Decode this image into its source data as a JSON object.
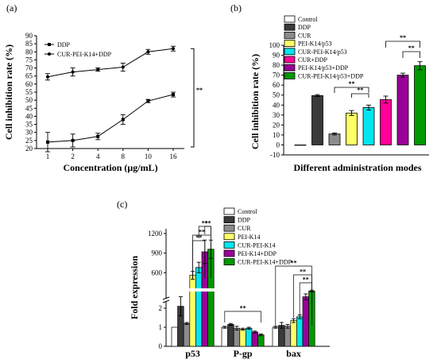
{
  "chart_data": [
    {
      "panel": "(a)",
      "type": "line",
      "x": [
        "1",
        "2",
        "4",
        "8",
        "10",
        "16"
      ],
      "xlabel": "Concentration (μg/mL)",
      "ylabel": "Cell inhibition rate (%)",
      "ylim": [
        20,
        90
      ],
      "yticks": [
        20,
        25,
        30,
        35,
        40,
        45,
        50,
        55,
        60,
        65,
        70,
        75,
        80,
        85,
        90
      ],
      "series": [
        {
          "name": "DDP",
          "values": [
            24,
            25,
            27.5,
            38,
            49.5,
            53.5
          ],
          "errors": [
            6,
            4,
            2,
            3,
            1,
            1.5
          ]
        },
        {
          "name": "CUR-PEI-K14+DDP",
          "values": [
            64.5,
            67.5,
            69,
            70.5,
            80,
            82
          ],
          "errors": [
            2,
            2.5,
            1,
            2.5,
            1.5,
            1.5
          ]
        }
      ],
      "annotation": "**",
      "grid": false,
      "legend": "top-left"
    },
    {
      "panel": "(b)",
      "type": "bar",
      "categories": [
        "Control",
        "DDP",
        "CUR",
        "PEI-K14/p53",
        "CUR-PEI-K14/p53",
        "CUR+DDP",
        "PEI-K14/p53+DDP",
        "CUR-PEI-K14/p53+DDP"
      ],
      "values": [
        0,
        49.5,
        11,
        32,
        37.5,
        45.5,
        70,
        79.5
      ],
      "errors": [
        0,
        1,
        1,
        2.5,
        2.5,
        3.5,
        2,
        4
      ],
      "colors": [
        "#ffffff",
        "#3a3a3a",
        "#8c8c8c",
        "#ffff66",
        "#00e5ee",
        "#ff0099",
        "#990099",
        "#009900"
      ],
      "xlabel": "Different administration modes",
      "ylabel": "Cell inhibition rate (%)",
      "ylim": [
        -10,
        100
      ],
      "yticks": [
        -10,
        0,
        10,
        20,
        30,
        40,
        50,
        60,
        70,
        80,
        90,
        100
      ],
      "significance": [
        "**",
        "**",
        "**",
        "**"
      ],
      "grid": false,
      "legend": "top-left"
    },
    {
      "panel": "(c)",
      "type": "bar",
      "categories": [
        "p53",
        "P-gp",
        "bax"
      ],
      "series": [
        {
          "name": "Control",
          "values": [
            1,
            1,
            1
          ],
          "errors": [
            0,
            0.05,
            0.05
          ],
          "color": "#ffffff"
        },
        {
          "name": "DDP",
          "values": [
            2.1,
            1.15,
            1.1
          ],
          "errors": [
            0.5,
            0.05,
            0.15
          ],
          "color": "#3a3a3a"
        },
        {
          "name": "CUR",
          "values": [
            1.2,
            0.95,
            1.05
          ],
          "errors": [
            0.05,
            0.1,
            0.1
          ],
          "color": "#8c8c8c"
        },
        {
          "name": "PEI-K14",
          "values": [
            560,
            0.9,
            1.35
          ],
          "errors": [
            60,
            0.05,
            0.1
          ],
          "color": "#ffff66"
        },
        {
          "name": "CUR-PEI-K14",
          "values": [
            680,
            0.95,
            1.55
          ],
          "errors": [
            80,
            0.05,
            0.1
          ],
          "color": "#00e5ee"
        },
        {
          "name": "PEI-K14+DDP",
          "values": [
            920,
            0.75,
            2.6
          ],
          "errors": [
            180,
            0.05,
            0.15
          ],
          "color": "#990099"
        },
        {
          "name": "CUR-PEI-K14+DDP",
          "values": [
            960,
            0.6,
            2.9
          ],
          "errors": [
            140,
            0.05,
            0.05
          ],
          "color": "#009900"
        }
      ],
      "ylabel": "Fold expression",
      "yaxis_lower_ticks": [
        "0",
        "1",
        "2"
      ],
      "yaxis_upper_ticks": [
        "600",
        "900",
        "1200"
      ],
      "axis_break": true,
      "significance": [
        "**",
        "**",
        "**",
        "**",
        "**",
        "**",
        "**"
      ],
      "grid": false,
      "legend": "top-right"
    }
  ]
}
